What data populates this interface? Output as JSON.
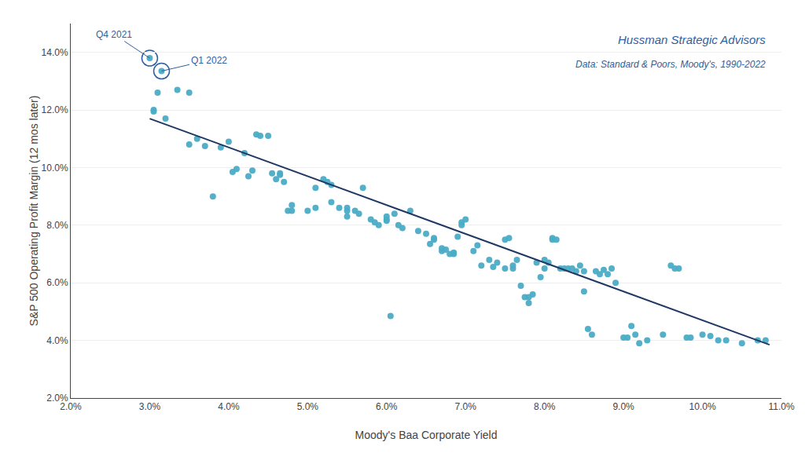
{
  "chart_data": {
    "type": "scatter",
    "xlabel": "Moody's Baa Corporate Yield",
    "ylabel": "S&P 500 Operating Profit Margin (12 mos later)",
    "series": [
      {
        "type": "scatter",
        "color": "#4BACC6",
        "x": [
          3.0,
          3.15,
          3.1,
          3.05,
          3.05,
          3.2,
          3.35,
          3.5,
          3.6,
          3.5,
          3.7,
          3.8,
          3.9,
          4.0,
          4.05,
          4.1,
          4.2,
          4.25,
          4.3,
          4.35,
          4.4,
          4.5,
          4.55,
          4.6,
          4.65,
          4.65,
          4.7,
          4.75,
          4.8,
          4.8,
          5.0,
          5.1,
          5.1,
          5.2,
          5.25,
          5.3,
          5.3,
          5.4,
          5.5,
          5.5,
          5.5,
          5.6,
          5.65,
          5.7,
          5.8,
          5.85,
          5.9,
          6.0,
          6.0,
          6.0,
          6.05,
          6.1,
          6.15,
          6.2,
          6.3,
          6.4,
          6.5,
          6.55,
          6.6,
          6.6,
          6.7,
          6.7,
          6.75,
          6.8,
          6.85,
          6.85,
          6.9,
          6.95,
          6.95,
          7.0,
          7.1,
          7.15,
          7.2,
          7.3,
          7.35,
          7.4,
          7.5,
          7.5,
          7.55,
          7.6,
          7.6,
          7.65,
          7.7,
          7.75,
          7.8,
          7.8,
          7.85,
          7.9,
          7.95,
          8.0,
          8.0,
          8.05,
          8.1,
          8.1,
          8.15,
          8.2,
          8.25,
          8.3,
          8.35,
          8.4,
          8.45,
          8.5,
          8.5,
          8.55,
          8.6,
          8.65,
          8.7,
          8.75,
          8.8,
          8.85,
          8.9,
          9.0,
          9.05,
          9.1,
          9.15,
          9.2,
          9.3,
          9.5,
          9.6,
          9.65,
          9.7,
          9.8,
          9.85,
          10.0,
          10.1,
          10.2,
          10.3,
          10.5,
          10.7,
          10.8
        ],
        "values": [
          13.8,
          13.35,
          12.6,
          11.95,
          12.0,
          11.7,
          12.7,
          12.6,
          11.0,
          10.8,
          10.75,
          9.0,
          10.7,
          10.9,
          9.85,
          9.95,
          10.5,
          9.7,
          9.9,
          11.15,
          11.1,
          11.1,
          9.8,
          9.6,
          9.75,
          9.8,
          9.5,
          8.5,
          8.7,
          8.5,
          8.5,
          8.6,
          9.3,
          9.6,
          9.5,
          9.4,
          8.8,
          8.6,
          8.6,
          8.5,
          8.3,
          8.5,
          8.4,
          9.3,
          8.2,
          8.1,
          8.0,
          8.15,
          8.2,
          8.3,
          4.85,
          8.4,
          8.0,
          7.9,
          8.5,
          7.8,
          7.7,
          7.35,
          7.5,
          7.55,
          7.1,
          7.2,
          7.15,
          7.0,
          7.0,
          7.05,
          7.6,
          8.0,
          8.1,
          8.2,
          7.1,
          7.3,
          6.6,
          6.8,
          6.55,
          6.7,
          6.5,
          7.5,
          7.55,
          6.5,
          6.6,
          6.8,
          5.9,
          5.5,
          5.3,
          5.5,
          5.6,
          6.7,
          6.2,
          6.5,
          6.8,
          6.7,
          7.5,
          7.55,
          7.5,
          6.5,
          6.5,
          6.5,
          6.5,
          6.4,
          6.6,
          6.4,
          5.7,
          4.4,
          4.2,
          6.4,
          6.3,
          6.45,
          6.3,
          6.5,
          6.0,
          4.1,
          4.1,
          4.5,
          4.2,
          3.9,
          4.0,
          4.2,
          6.6,
          6.5,
          6.5,
          4.1,
          4.1,
          4.2,
          4.15,
          4.0,
          4.0,
          3.9,
          4.0,
          4.0
        ]
      },
      {
        "type": "line",
        "color": "#1F3864",
        "x": [
          3.0,
          10.85
        ],
        "values": [
          11.7,
          3.85
        ]
      }
    ],
    "annotations": [
      {
        "text": "Q4 2021",
        "x": 3.0,
        "y": 13.8,
        "color": "#2E5FA0"
      },
      {
        "text": "Q1 2022",
        "x": 3.15,
        "y": 13.35,
        "color": "#2E5FA0"
      },
      {
        "text": "Hussman Strategic Advisors",
        "color": "#2E5FA0"
      },
      {
        "text": "Data: Standard & Poors, Moody's, 1990-2022",
        "color": "#2E5FA0"
      }
    ],
    "xlim": [
      2.0,
      11.0
    ],
    "ylim": [
      2.0,
      15.0
    ],
    "xticks": [
      {
        "value": 2.0,
        "label": "2.0%"
      },
      {
        "value": 3.0,
        "label": "3.0%"
      },
      {
        "value": 4.0,
        "label": "4.0%"
      },
      {
        "value": 5.0,
        "label": "5.0%"
      },
      {
        "value": 6.0,
        "label": "6.0%"
      },
      {
        "value": 7.0,
        "label": "7.0%"
      },
      {
        "value": 8.0,
        "label": "8.0%"
      },
      {
        "value": 9.0,
        "label": "9.0%"
      },
      {
        "value": 10.0,
        "label": "10.0%"
      },
      {
        "value": 11.0,
        "label": "11.0%"
      }
    ],
    "yticks": [
      {
        "value": 2.0,
        "label": "2.0%"
      },
      {
        "value": 4.0,
        "label": "4.0%"
      },
      {
        "value": 6.0,
        "label": "6.0%"
      },
      {
        "value": 8.0,
        "label": "8.0%"
      },
      {
        "value": 10.0,
        "label": "10.0%"
      },
      {
        "value": 12.0,
        "label": "12.0%"
      },
      {
        "value": 14.0,
        "label": "14.0%"
      }
    ],
    "grid": "y"
  }
}
